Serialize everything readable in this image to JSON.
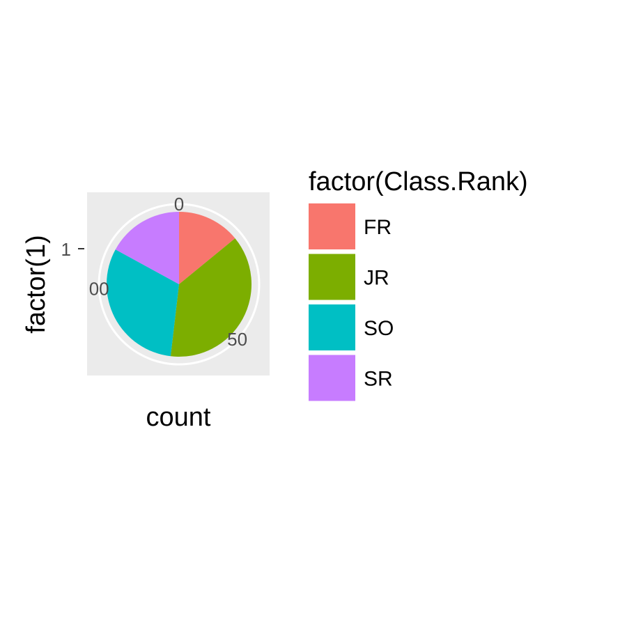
{
  "chart_data": {
    "type": "pie",
    "xlabel": "count",
    "ylabel": "factor(1)",
    "y_tick_labels": [
      "1"
    ],
    "angle_ticks": [
      {
        "value": 0,
        "label": "0"
      },
      {
        "value": 50,
        "label": "50"
      },
      {
        "value": 100,
        "label": "00"
      }
    ],
    "total": 135,
    "legend": {
      "title": "factor(Class.Rank)",
      "position": "right"
    },
    "slices": [
      {
        "label": "FR",
        "value": 19,
        "color": "#F8766D"
      },
      {
        "label": "JR",
        "value": 51,
        "color": "#7CAE00"
      },
      {
        "label": "SO",
        "value": 42,
        "color": "#00BFC4"
      },
      {
        "label": "SR",
        "value": 23,
        "color": "#C77CFF"
      }
    ],
    "panel_background": "#EBEBEB",
    "grid": true
  }
}
